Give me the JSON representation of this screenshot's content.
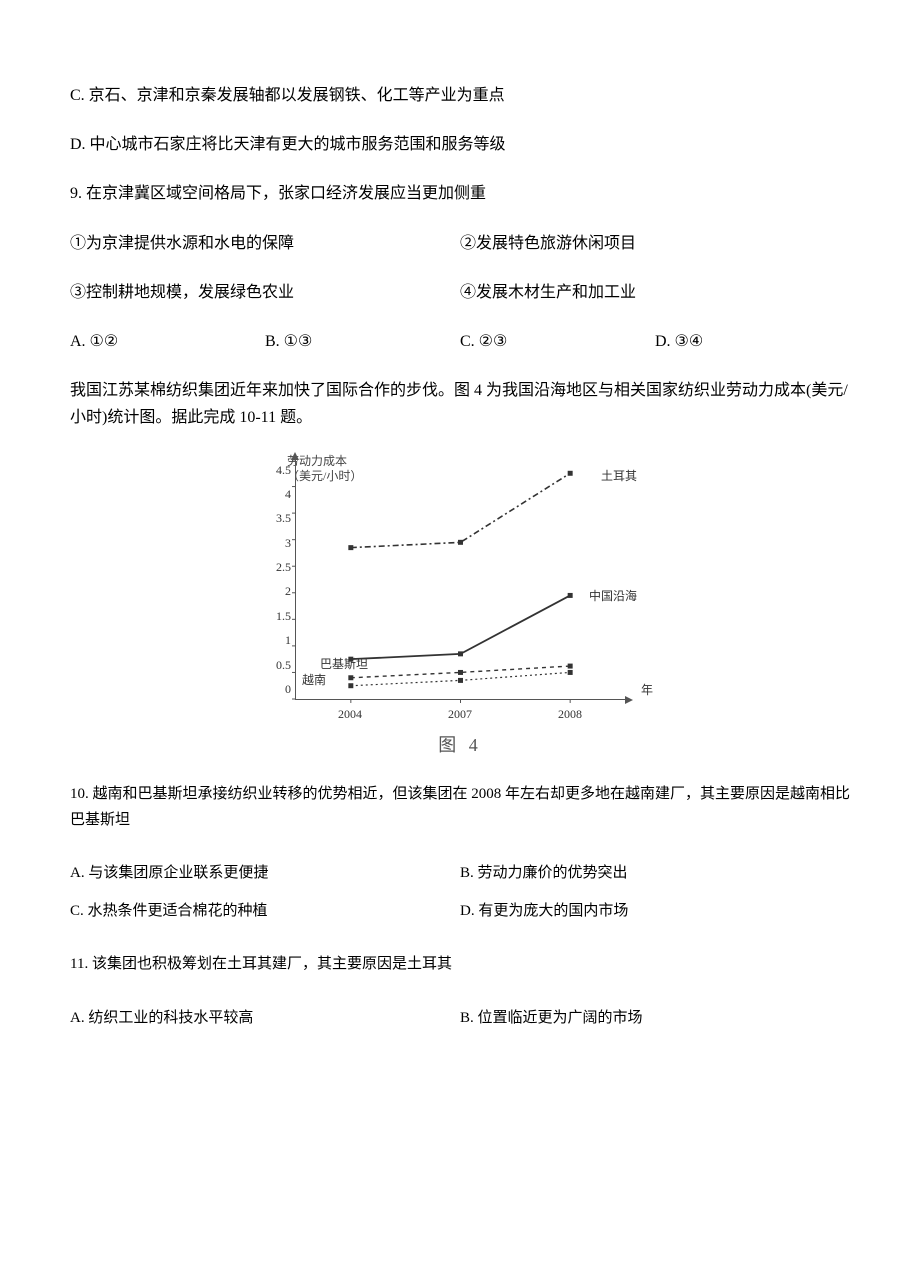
{
  "q8": {
    "optC": "C. 京石、京津和京秦发展轴都以发展钢铁、化工等产业为重点",
    "optD": "D. 中心城市石家庄将比天津有更大的城市服务范围和服务等级"
  },
  "q9": {
    "stem": "9. 在京津冀区域空间格局下，张家口经济发展应当更加侧重",
    "s1": "①为京津提供水源和水电的保障",
    "s2": "②发展特色旅游休闲项目",
    "s3": "③控制耕地规模，发展绿色农业",
    "s4": "④发展木材生产和加工业",
    "A": "A. ①②",
    "B": "B. ①③",
    "C": "C. ②③",
    "D": "D. ③④"
  },
  "intro10_11": "我国江苏某棉纺织集团近年来加快了国际合作的步伐。图 4 为我国沿海地区与相关国家纺织业劳动力成本(美元/小时)统计图。据此完成 10-11 题。",
  "chart": {
    "type": "line",
    "y_title_l1": "劳动力成本",
    "y_title_l2": "（美元/小时）",
    "x_unit": "年",
    "yticks": [
      "4.5",
      "4",
      "3.5",
      "3",
      "2.5",
      "2",
      "1.5",
      "1",
      "0.5",
      "0"
    ],
    "xticks": [
      "2004",
      "2007",
      "2008"
    ],
    "caption": "图 4",
    "ylim": [
      0,
      4.5
    ],
    "axis_color": "#555555",
    "background_color": "#ffffff",
    "series": {
      "turkey": {
        "label": "土耳其",
        "stroke": "#333333",
        "dash": "6 3 2 3",
        "width": 1.6,
        "values": [
          2.85,
          2.95,
          4.25
        ]
      },
      "china": {
        "label": "中国沿海",
        "stroke": "#333333",
        "dash": "",
        "width": 1.8,
        "values": [
          0.75,
          0.85,
          1.95
        ]
      },
      "pakistan": {
        "label": "巴基斯坦",
        "stroke": "#333333",
        "dash": "4 4",
        "width": 1.4,
        "values": [
          0.4,
          0.5,
          0.62
        ]
      },
      "vietnam": {
        "label": "越南",
        "stroke": "#333333",
        "dash": "2 3",
        "width": 1.2,
        "values": [
          0.25,
          0.35,
          0.5
        ]
      }
    }
  },
  "q10": {
    "stem": "10. 越南和巴基斯坦承接纺织业转移的优势相近，但该集团在 2008 年左右却更多地在越南建厂，其主要原因是越南相比巴基斯坦",
    "A": "A. 与该集团原企业联系更便捷",
    "B": "B. 劳动力廉价的优势突出",
    "C": "C. 水热条件更适合棉花的种植",
    "D": "D. 有更为庞大的国内市场"
  },
  "q11": {
    "stem": "11. 该集团也积极筹划在土耳其建厂，其主要原因是土耳其",
    "A": "A. 纺织工业的科技水平较高",
    "B": "B. 位置临近更为广阔的市场"
  }
}
